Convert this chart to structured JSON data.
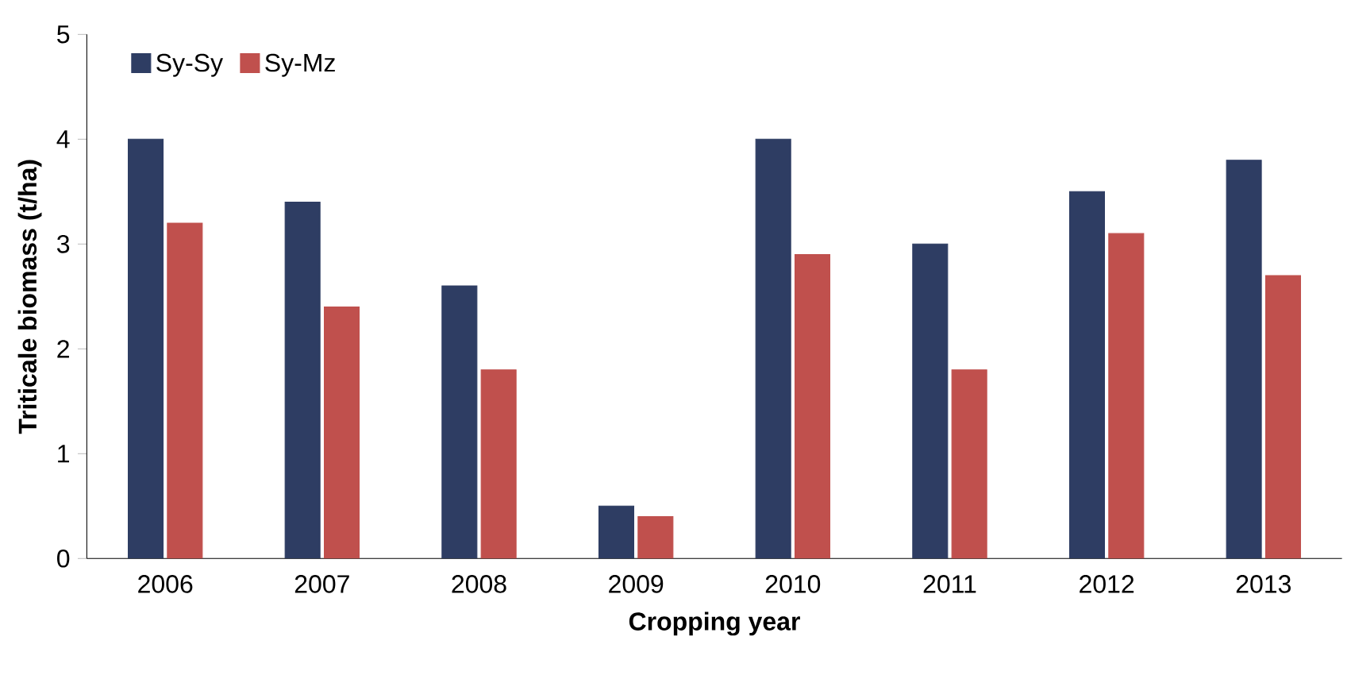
{
  "chart_data": {
    "type": "bar",
    "xlabel": "Cropping year",
    "ylabel": "Triticale biomass (t/ha)",
    "categories": [
      "2006",
      "2007",
      "2008",
      "2009",
      "2010",
      "2011",
      "2012",
      "2013"
    ],
    "series": [
      {
        "name": "Sy-Sy",
        "color": "#2e3d63",
        "values": [
          4.0,
          3.4,
          2.6,
          0.5,
          4.0,
          3.0,
          3.5,
          3.8
        ]
      },
      {
        "name": "Sy-Mz",
        "color": "#c0504d",
        "values": [
          3.2,
          2.4,
          1.8,
          0.4,
          2.9,
          1.8,
          3.1,
          2.7
        ]
      }
    ],
    "ylim": [
      0,
      5
    ],
    "yticks": [
      0,
      1,
      2,
      3,
      4,
      5
    ],
    "legend": "top left",
    "grid": false
  }
}
